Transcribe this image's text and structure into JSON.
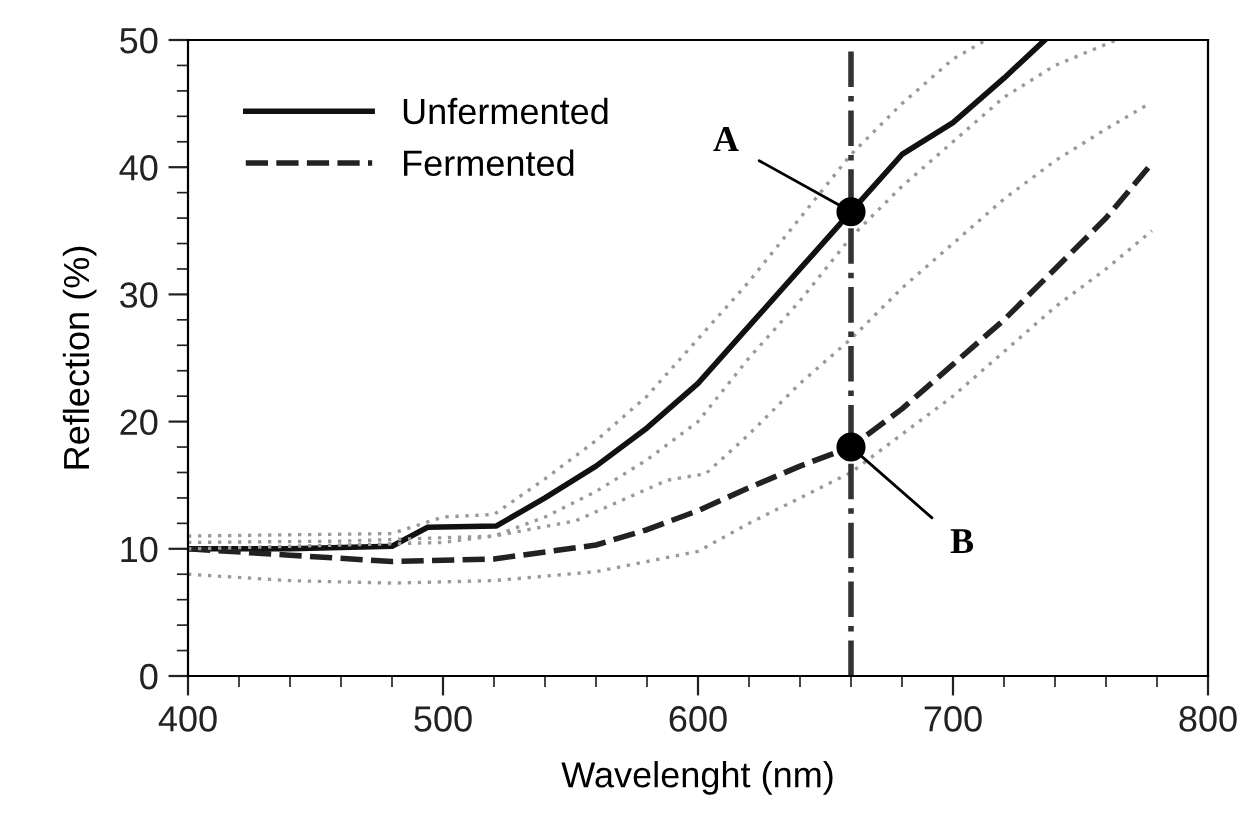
{
  "chart_data": {
    "type": "line",
    "xlabel": "Wavelenght (nm)",
    "ylabel": "Reflection (%)",
    "xlim": [
      400,
      800
    ],
    "ylim": [
      0,
      50
    ],
    "xticks": [
      400,
      500,
      600,
      700,
      800
    ],
    "yticks": [
      0,
      10,
      20,
      30,
      40,
      50
    ],
    "grid": false,
    "legend": "top left",
    "series": [
      {
        "name": "Unfermented",
        "color": "#111111",
        "line_style": "solid",
        "x": [
          400,
          440,
          480,
          494,
          521,
          540,
          560,
          580,
          600,
          620,
          640,
          660,
          680,
          700,
          720,
          736
        ],
        "values": [
          10,
          10,
          10.2,
          11.7,
          11.8,
          14,
          16.5,
          19.5,
          23,
          27.5,
          32,
          36.5,
          41,
          43.5,
          47,
          50
        ]
      },
      {
        "name": "Fermented",
        "color": "#222222",
        "line_style": "dashed",
        "x": [
          400,
          440,
          480,
          520,
          560,
          580,
          600,
          620,
          640,
          660,
          680,
          700,
          720,
          740,
          760,
          778
        ],
        "values": [
          10,
          9.5,
          9,
          9.2,
          10.3,
          11.5,
          13,
          14.8,
          16.5,
          18,
          21,
          24.5,
          28,
          32,
          36,
          40.3
        ]
      },
      {
        "color": "#999999",
        "line_style": "dotted",
        "x": [
          400,
          480,
          500,
          520,
          540,
          560,
          580,
          600,
          620,
          640,
          660,
          680,
          700,
          713
        ],
        "values": [
          11,
          11.2,
          12.5,
          12.7,
          15.5,
          18.5,
          22,
          26.5,
          31,
          36,
          41,
          45,
          48.5,
          50
        ]
      },
      {
        "color": "#999999",
        "line_style": "dotted",
        "x": [
          400,
          500,
          520,
          540,
          560,
          580,
          600,
          620,
          640,
          660,
          680,
          700,
          720,
          740,
          764
        ],
        "values": [
          10,
          10.5,
          11,
          12.5,
          14.5,
          17,
          20,
          25,
          29.5,
          34.5,
          38.5,
          42,
          45.5,
          48,
          50
        ]
      },
      {
        "color": "#999999",
        "line_style": "dotted",
        "x": [
          400,
          460,
          520,
          552,
          588,
          603,
          620,
          640,
          660,
          680,
          700,
          720,
          740,
          760,
          777
        ],
        "values": [
          10.5,
          10.6,
          11,
          12.2,
          15.4,
          15.9,
          19,
          23,
          26.5,
          30.5,
          34,
          37.5,
          40.5,
          43,
          45
        ]
      },
      {
        "color": "#999999",
        "line_style": "dotted",
        "x": [
          400,
          440,
          480,
          520,
          560,
          600,
          620,
          640,
          660,
          680,
          700,
          720,
          740,
          760,
          778
        ],
        "values": [
          8,
          7.5,
          7.3,
          7.5,
          8.2,
          9.8,
          12,
          14,
          16,
          19,
          22,
          25.5,
          29,
          32,
          35
        ]
      },
      {
        "type": "scatter",
        "color": "#000000",
        "marker": "circle",
        "x": [
          660,
          660
        ],
        "values": [
          36.5,
          18
        ]
      }
    ],
    "ref_lines": [
      {
        "axis": "x",
        "value": 660,
        "color": "#333333",
        "line_style": "dashdot"
      }
    ],
    "annotations": [
      {
        "text": "A",
        "x": 660,
        "y": 36.5
      },
      {
        "text": "B",
        "x": 660,
        "y": 18
      }
    ]
  }
}
